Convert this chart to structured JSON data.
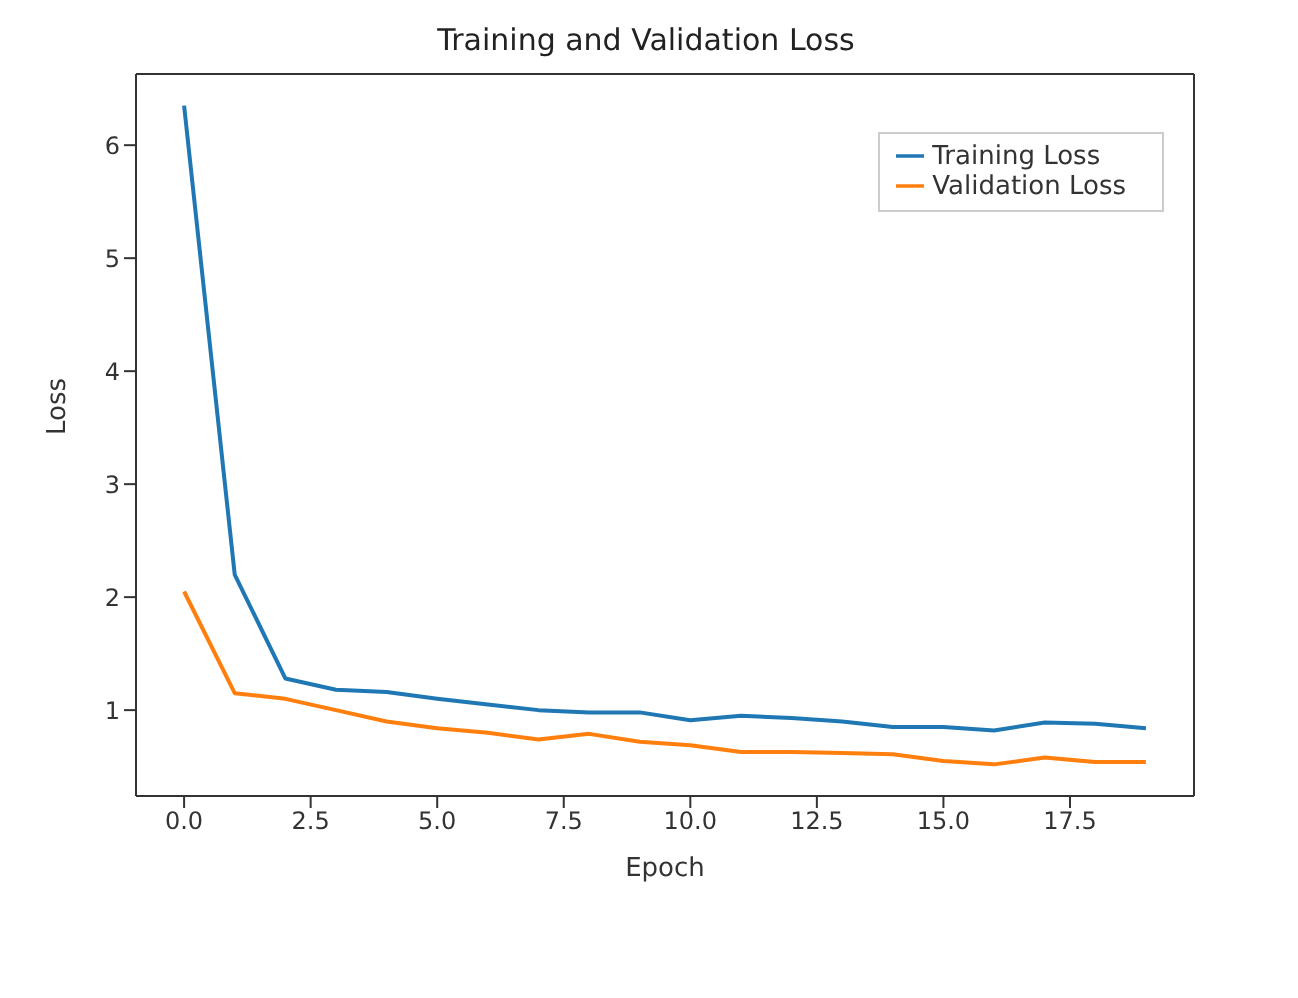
{
  "chart_data": {
    "type": "line",
    "title": "Training and Validation Loss",
    "xlabel": "Epoch",
    "ylabel": "Loss",
    "x": [
      0,
      1,
      2,
      3,
      4,
      5,
      6,
      7,
      8,
      9,
      10,
      11,
      12,
      13,
      14,
      15,
      16,
      17,
      18,
      19
    ],
    "series": [
      {
        "name": "Training Loss",
        "color": "#1f77b4",
        "values": [
          6.35,
          2.2,
          1.28,
          1.18,
          1.16,
          1.1,
          1.05,
          1.0,
          0.98,
          0.98,
          0.91,
          0.95,
          0.93,
          0.9,
          0.85,
          0.85,
          0.82,
          0.89,
          0.88,
          0.84
        ]
      },
      {
        "name": "Validation Loss",
        "color": "#ff7f0e",
        "values": [
          2.05,
          1.15,
          1.1,
          1.0,
          0.9,
          0.84,
          0.8,
          0.74,
          0.79,
          0.72,
          0.69,
          0.63,
          0.63,
          0.62,
          0.61,
          0.55,
          0.52,
          0.58,
          0.54,
          0.54
        ]
      }
    ],
    "xlim": [
      -0.95,
      19.95
    ],
    "ylim": [
      0.24,
      6.63
    ],
    "xticks": [
      {
        "value": 0,
        "label": "0.0"
      },
      2.5,
      {
        "value": 5,
        "label": "5.0"
      },
      7.5,
      {
        "value": 10,
        "label": "10.0"
      },
      12.5,
      {
        "value": 15,
        "label": "15.0"
      },
      17.5
    ],
    "yticks": [
      1,
      2,
      3,
      4,
      5,
      6
    ],
    "legend": "top right",
    "grid": false,
    "marker": "none",
    "line_style": "solid"
  }
}
